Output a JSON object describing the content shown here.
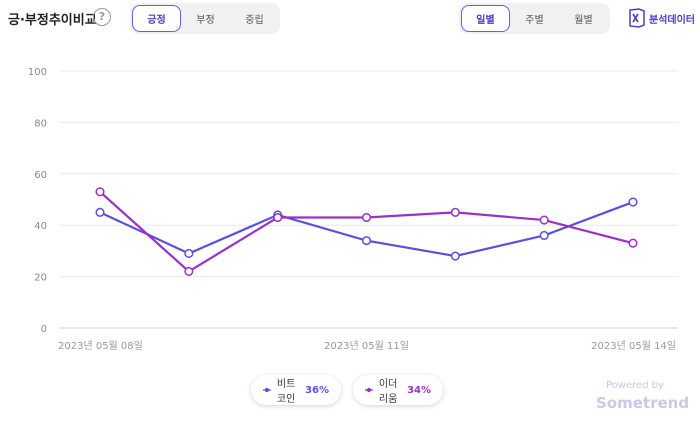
{
  "header": {
    "title": "긍·부정추이비교",
    "help_icon": "question-circle-icon",
    "sentiment_tabs": [
      "긍정",
      "부정",
      "중립"
    ],
    "sentiment_active": "긍정",
    "period_tabs": [
      "일별",
      "주별",
      "월별"
    ],
    "period_active": "일별",
    "export_label": "분석데이터",
    "export_icon": "excel-icon"
  },
  "chart_data": {
    "type": "line",
    "title": "",
    "xlabel": "",
    "ylabel": "",
    "x": [
      "2023년 05월 08일",
      "2023년 05월 09일",
      "2023년 05월 10일",
      "2023년 05월 11일",
      "2023년 05월 12일",
      "2023년 05월 13일",
      "2023년 05월 14일"
    ],
    "x_tick_labels": [
      "2023년 05월 08일",
      "2023년 05월 11일",
      "2023년 05월 14일"
    ],
    "ylim": [
      0,
      100
    ],
    "yticks": [
      0,
      20,
      40,
      60,
      80,
      100
    ],
    "grid": true,
    "legend_position": "bottom-center",
    "series": [
      {
        "name": "비트코인",
        "color": "#5b4fe0",
        "values": [
          45,
          29,
          44,
          34,
          28,
          36,
          49
        ],
        "share": "36%"
      },
      {
        "name": "이더리움",
        "color": "#9b30c8",
        "values": [
          53,
          22,
          43,
          43,
          45,
          42,
          33
        ],
        "share": "34%"
      }
    ]
  },
  "footer": {
    "powered_by": "Powered by",
    "brand": "Sometrend"
  }
}
